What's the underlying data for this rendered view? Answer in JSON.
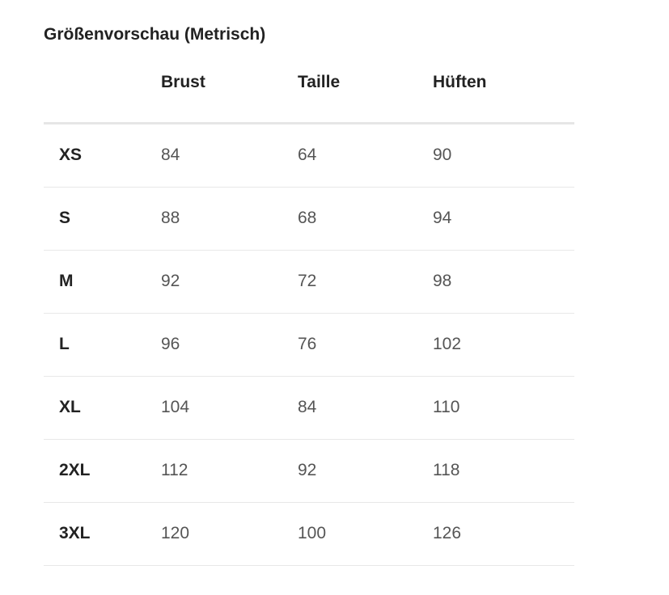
{
  "title": "Größenvorschau (Metrisch)",
  "columns": [
    "",
    "Brust",
    "Taille",
    "Hüften"
  ],
  "rows": [
    [
      "XS",
      "84",
      "64",
      "90"
    ],
    [
      "S",
      "88",
      "68",
      "94"
    ],
    [
      "M",
      "92",
      "72",
      "98"
    ],
    [
      "L",
      "96",
      "76",
      "102"
    ],
    [
      "XL",
      "104",
      "84",
      "110"
    ],
    [
      "2XL",
      "112",
      "92",
      "118"
    ],
    [
      "3XL",
      "120",
      "100",
      "126"
    ]
  ]
}
